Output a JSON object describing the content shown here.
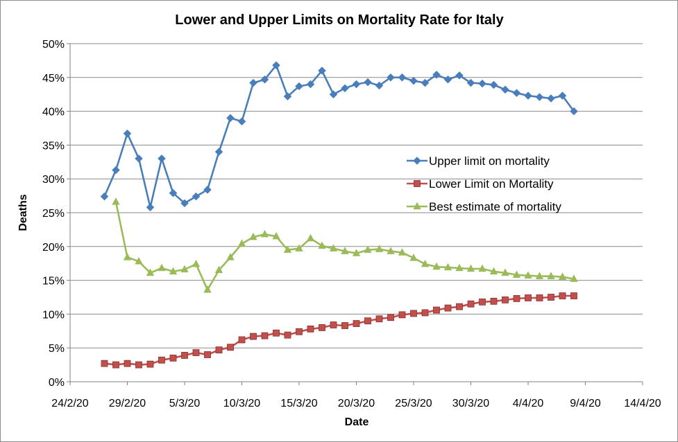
{
  "chart_data": {
    "type": "line",
    "title": "Lower and Upper Limits on Mortality Rate for Italy",
    "xlabel": "Date",
    "ylabel": "Deaths",
    "x_ticks": [
      "24/2/20",
      "29/2/20",
      "5/3/20",
      "10/3/20",
      "15/3/20",
      "20/3/20",
      "25/3/20",
      "30/3/20",
      "4/4/20",
      "9/4/20",
      "14/4/20"
    ],
    "y_ticks": [
      "0%",
      "5%",
      "10%",
      "15%",
      "20%",
      "25%",
      "30%",
      "35%",
      "40%",
      "45%",
      "50%"
    ],
    "xlim": [
      0,
      50
    ],
    "ylim": [
      0,
      50
    ],
    "grid": "horizontal major gridlines",
    "legend_position": "right-center inside plot area",
    "series": [
      {
        "name": "Upper limit on mortality",
        "color": "#4a7ebb",
        "marker": "diamond",
        "x": [
          3,
          4,
          5,
          6,
          7,
          8,
          9,
          10,
          11,
          12,
          13,
          14,
          15,
          16,
          17,
          18,
          19,
          20,
          21,
          22,
          23,
          24,
          25,
          26,
          27,
          28,
          29,
          30,
          31,
          32,
          33,
          34,
          35,
          36,
          37,
          38,
          39,
          40,
          41,
          42,
          43,
          44
        ],
        "values": [
          27.4,
          31.3,
          36.7,
          33.0,
          25.8,
          33.0,
          27.9,
          26.4,
          27.4,
          28.4,
          34.0,
          39.0,
          38.5,
          44.2,
          44.7,
          46.8,
          42.2,
          43.7,
          44.0,
          46.0,
          42.5,
          43.4,
          44.0,
          44.3,
          43.8,
          45.0,
          45.0,
          44.5,
          44.2,
          45.4,
          44.7,
          45.3,
          44.2,
          44.1,
          43.9,
          43.2,
          42.7,
          42.3,
          42.1,
          41.9,
          42.3,
          40.0
        ]
      },
      {
        "name": "Lower Limit on Mortality",
        "color": "#c0504d",
        "marker": "square",
        "x": [
          3,
          4,
          5,
          6,
          7,
          8,
          9,
          10,
          11,
          12,
          13,
          14,
          15,
          16,
          17,
          18,
          19,
          20,
          21,
          22,
          23,
          24,
          25,
          26,
          27,
          28,
          29,
          30,
          31,
          32,
          33,
          34,
          35,
          36,
          37,
          38,
          39,
          40,
          41,
          42,
          43,
          44
        ],
        "values": [
          2.7,
          2.5,
          2.7,
          2.5,
          2.6,
          3.2,
          3.5,
          3.9,
          4.3,
          4.0,
          4.7,
          5.1,
          6.2,
          6.7,
          6.8,
          7.2,
          6.9,
          7.4,
          7.8,
          8.0,
          8.4,
          8.3,
          8.6,
          9.0,
          9.3,
          9.5,
          9.9,
          10.1,
          10.2,
          10.6,
          10.9,
          11.1,
          11.5,
          11.8,
          11.9,
          12.1,
          12.3,
          12.4,
          12.4,
          12.5,
          12.7,
          12.7
        ]
      },
      {
        "name": "Best estimate of mortality",
        "color": "#9bbb59",
        "marker": "triangle",
        "x": [
          4,
          5,
          6,
          7,
          8,
          9,
          10,
          11,
          12,
          13,
          14,
          15,
          16,
          17,
          18,
          19,
          20,
          21,
          22,
          23,
          24,
          25,
          26,
          27,
          28,
          29,
          30,
          31,
          32,
          33,
          34,
          35,
          36,
          37,
          38,
          39,
          40,
          41,
          42,
          43,
          44
        ],
        "values": [
          26.6,
          18.4,
          17.8,
          16.1,
          16.8,
          16.3,
          16.6,
          17.4,
          13.6,
          16.5,
          18.4,
          20.4,
          21.4,
          21.8,
          21.5,
          19.5,
          19.7,
          21.2,
          20.1,
          19.7,
          19.3,
          19.0,
          19.5,
          19.6,
          19.3,
          19.1,
          18.3,
          17.4,
          17.0,
          16.9,
          16.8,
          16.7,
          16.7,
          16.3,
          16.1,
          15.8,
          15.7,
          15.6,
          15.6,
          15.5,
          15.2
        ]
      }
    ]
  }
}
